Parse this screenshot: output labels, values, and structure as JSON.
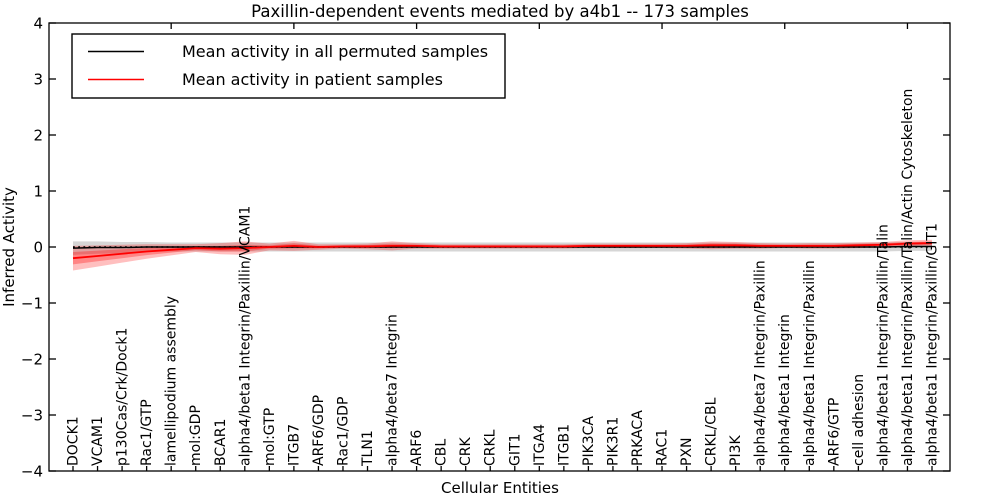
{
  "chart_data": {
    "type": "line",
    "title": "Paxillin-dependent events mediated by a4b1 -- 173 samples",
    "xlabel": "Cellular Entities",
    "ylabel": "Inferred Activity",
    "ylim": [
      -4,
      4
    ],
    "yticks": [
      -4,
      -3,
      -2,
      -1,
      0,
      1,
      2,
      3,
      4
    ],
    "grid": false,
    "legend_position": "upper left",
    "zero_line": {
      "style": "dotted",
      "color": "#000000",
      "y": 0
    },
    "top_tick_indices": [
      4,
      9,
      14,
      19,
      24,
      29,
      34
    ],
    "categories": [
      "DOCK1",
      "VCAM1",
      "p130Cas/Crk/Dock1",
      "Rac1/GTP",
      "lamellipodium assembly",
      "mol:GDP",
      "BCAR1",
      "alpha4/beta1 Integrin/Paxillin/VCAM1",
      "mol:GTP",
      "ITGB7",
      "ARF6/GDP",
      "Rac1/GDP",
      "TLN1",
      "alpha4/beta7 Integrin",
      "ARF6",
      "CBL",
      "CRK",
      "CRKL",
      "GIT1",
      "ITGA4",
      "ITGB1",
      "PIK3CA",
      "PIK3R1",
      "PRKACA",
      "RAC1",
      "PXN",
      "CRKL/CBL",
      "PI3K",
      "alpha4/beta7 Integrin/Paxillin",
      "alpha4/beta1 Integrin",
      "alpha4/beta1 Integrin/Paxillin",
      "ARF6/GTP",
      "cell adhesion",
      "alpha4/beta1 Integrin/Paxillin/Talin",
      "alpha4/beta1 Integrin/Paxillin/Talin/Actin Cytoskeleton",
      "alpha4/beta1 Integrin/Paxillin/GIT1"
    ],
    "series": [
      {
        "name": "Mean activity in all permuted samples",
        "color": "#000000",
        "band_color": "rgba(0,0,0,0.16)",
        "values": [
          -0.02,
          -0.01,
          -0.01,
          0,
          0,
          0,
          0,
          0,
          0,
          0,
          0,
          0,
          0,
          0,
          0,
          0,
          0,
          0,
          0,
          0,
          0,
          0,
          0,
          0,
          0,
          0,
          0,
          0,
          0,
          0,
          0,
          0,
          0,
          0,
          0.01,
          0.01
        ],
        "band_halfwidth": [
          0.12,
          0.11,
          0.1,
          0.09,
          0.08,
          0.08,
          0.08,
          0.08,
          0.08,
          0.08,
          0.08,
          0.08,
          0.08,
          0.08,
          0.08,
          0.08,
          0.08,
          0.08,
          0.08,
          0.08,
          0.08,
          0.08,
          0.08,
          0.08,
          0.08,
          0.08,
          0.08,
          0.08,
          0.08,
          0.08,
          0.08,
          0.08,
          0.08,
          0.08,
          0.08,
          0.08
        ]
      },
      {
        "name": "Mean activity in patient samples",
        "color": "#ff0000",
        "band_color": "rgba(255,0,0,0.25)",
        "inner_band_color": "rgba(255,0,0,0.30)",
        "values": [
          -0.2,
          -0.16,
          -0.12,
          -0.08,
          -0.05,
          -0.02,
          -0.03,
          -0.02,
          0.0,
          0.02,
          0.0,
          0.01,
          0.01,
          0.02,
          0.02,
          0.01,
          0.01,
          0.01,
          0.01,
          0.01,
          0.01,
          0.02,
          0.02,
          0.02,
          0.02,
          0.02,
          0.03,
          0.03,
          0.02,
          0.02,
          0.02,
          0.02,
          0.03,
          0.04,
          0.06,
          0.07
        ],
        "band_halfwidth": [
          0.22,
          0.19,
          0.16,
          0.13,
          0.1,
          0.07,
          0.1,
          0.12,
          0.06,
          0.09,
          0.05,
          0.04,
          0.05,
          0.08,
          0.05,
          0.04,
          0.04,
          0.04,
          0.04,
          0.04,
          0.04,
          0.04,
          0.04,
          0.04,
          0.04,
          0.05,
          0.07,
          0.06,
          0.05,
          0.04,
          0.05,
          0.05,
          0.05,
          0.05,
          0.06,
          0.06
        ]
      }
    ]
  }
}
